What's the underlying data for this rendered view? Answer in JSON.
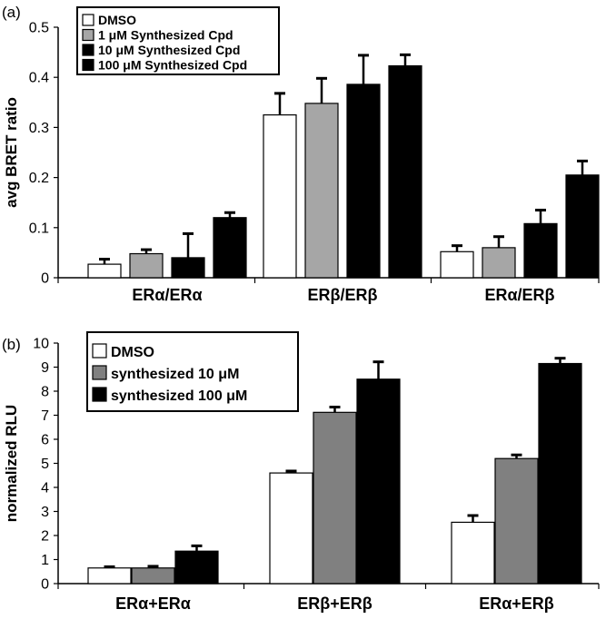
{
  "chart_data": [
    {
      "type": "bar",
      "panel_label": "(a)",
      "ylabel": "avg BRET ratio",
      "ylim": [
        0,
        0.5
      ],
      "yticks": [
        "0",
        "0.1",
        "0.2",
        "0.3",
        "0.4",
        "0.5"
      ],
      "categories": [
        "ERα/ERα",
        "ERβ/ERβ",
        "ERα/ERβ"
      ],
      "legend_placement": "top-left",
      "series": [
        {
          "name": "DMSO",
          "color": "#ffffff",
          "values": [
            0.027,
            0.325,
            0.052
          ],
          "errors": [
            0.01,
            0.043,
            0.012
          ]
        },
        {
          "name": "1 μM Synthesized Cpd",
          "color": "#a6a6a6",
          "values": [
            0.048,
            0.348,
            0.06
          ],
          "errors": [
            0.008,
            0.05,
            0.022
          ]
        },
        {
          "name": "10 μM Synthesized Cpd",
          "color": "#000000",
          "values": [
            0.04,
            0.386,
            0.108
          ],
          "errors": [
            0.048,
            0.058,
            0.027
          ]
        },
        {
          "name": "100 μM Synthesized Cpd",
          "color": "#000000",
          "values": [
            0.12,
            0.423,
            0.205
          ],
          "errors": [
            0.01,
            0.022,
            0.028
          ]
        }
      ]
    },
    {
      "type": "bar",
      "panel_label": "(b)",
      "ylabel": "normalized RLU",
      "ylim": [
        0,
        10
      ],
      "yticks": [
        "0",
        "1",
        "2",
        "3",
        "4",
        "5",
        "6",
        "7",
        "8",
        "9",
        "10"
      ],
      "categories": [
        "ERα+ERα",
        "ERβ+ERβ",
        "ERα+ERβ"
      ],
      "legend_placement": "top-left",
      "series": [
        {
          "name": "DMSO",
          "color": "#ffffff",
          "values": [
            0.65,
            4.6,
            2.55
          ],
          "errors": [
            0.05,
            0.08,
            0.28
          ]
        },
        {
          "name": "synthesized 10 μM",
          "color": "#808080",
          "values": [
            0.65,
            7.12,
            5.2
          ],
          "errors": [
            0.07,
            0.22,
            0.15
          ]
        },
        {
          "name": "synthesized 100 μM",
          "color": "#000000",
          "values": [
            1.35,
            8.5,
            9.15
          ],
          "errors": [
            0.22,
            0.72,
            0.22
          ]
        }
      ]
    }
  ]
}
